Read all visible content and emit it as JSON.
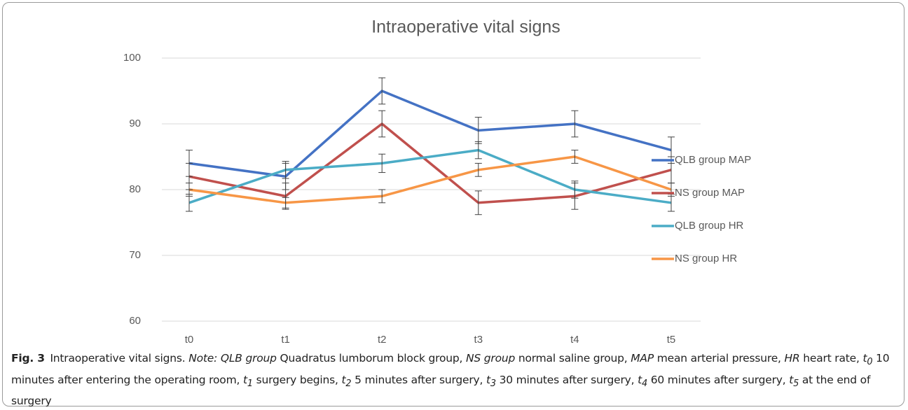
{
  "chart_data": {
    "type": "line",
    "title": "Intraoperative vital signs",
    "categories": [
      "t0",
      "t1",
      "t2",
      "t3",
      "t4",
      "t5"
    ],
    "series": [
      {
        "name": "QLB group MAP",
        "color": "#4472c4",
        "values": [
          84,
          82,
          95,
          89,
          90,
          86
        ],
        "errors": [
          2,
          2,
          2,
          2,
          2,
          2
        ]
      },
      {
        "name": "NS group MAP",
        "color": "#c0504d",
        "values": [
          82,
          79,
          90,
          78,
          79,
          83
        ],
        "errors": [
          2,
          2,
          2,
          1.8,
          2,
          2
        ]
      },
      {
        "name": "QLB group HR",
        "color": "#4bacc6",
        "values": [
          78,
          83,
          84,
          86,
          80,
          78
        ],
        "errors": [
          1.3,
          1.3,
          1.4,
          1.3,
          1.3,
          1.3
        ]
      },
      {
        "name": "NS group HR",
        "color": "#f79646",
        "values": [
          80,
          78,
          79,
          83,
          85,
          80
        ],
        "errors": [
          1,
          0.8,
          1,
          1,
          1,
          1
        ]
      }
    ],
    "ylim": [
      60,
      100
    ],
    "yticks": [
      60,
      70,
      80,
      90,
      100
    ],
    "grid": true,
    "legend": "right"
  },
  "caption": {
    "label": "Fig. 3",
    "title": "Intraoperative vital signs.",
    "note_label": "Note:",
    "items": [
      {
        "term": "QLB group",
        "text": " Quadratus lumborum block group,"
      },
      {
        "term": "NS group",
        "text": " normal saline group,"
      },
      {
        "term": "MAP",
        "text": " mean arterial pressure,"
      },
      {
        "term": "HR",
        "text": " heart rate,"
      },
      {
        "term": "t",
        "sub": "0",
        "text": " 10 minutes after entering the operating room,"
      },
      {
        "term": "t",
        "sub": "1",
        "text": " surgery begins,"
      },
      {
        "term": "t",
        "sub": "2",
        "text": " 5 minutes after surgery,"
      },
      {
        "term": "t",
        "sub": "3",
        "text": " 30 minutes after surgery,"
      },
      {
        "term": "t",
        "sub": "4",
        "text": " 60 minutes after surgery,"
      },
      {
        "term": "t",
        "sub": "5",
        "text": " at the end of surgery"
      }
    ]
  }
}
